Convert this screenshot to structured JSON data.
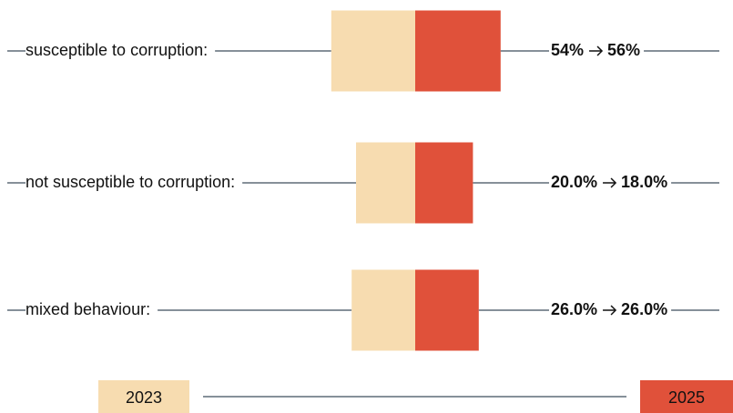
{
  "chart_data": {
    "type": "box-compare",
    "categories": [
      "susceptible to corruption:",
      "not susceptible to corruption:",
      "mixed behaviour:"
    ],
    "series": [
      {
        "name": "2023",
        "color": "#f7dcb0",
        "values": [
          54,
          20.0,
          26.0
        ],
        "value_labels": [
          "54%",
          "20.0%",
          "26.0%"
        ]
      },
      {
        "name": "2025",
        "color": "#e0513a",
        "values": [
          56,
          18.0,
          26.0
        ],
        "value_labels": [
          "56%",
          "18.0%",
          "26.0%"
        ]
      }
    ]
  }
}
